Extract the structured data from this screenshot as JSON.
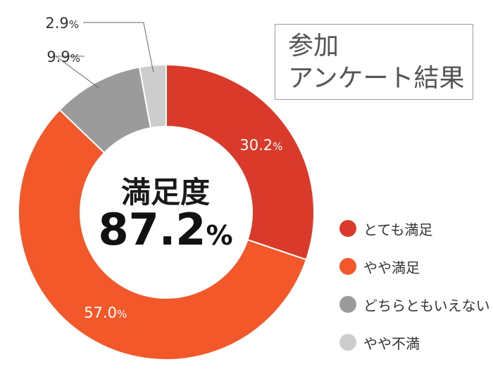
{
  "title_lines": [
    "参加",
    "アンケート結果"
  ],
  "center": {
    "title": "満足度",
    "value": "87.2",
    "unit": "%"
  },
  "chart_data": {
    "type": "pie",
    "variant": "donut",
    "unit": "%",
    "categories": [
      "とても満足",
      "やや満足",
      "どちらともいえない",
      "やや不満"
    ],
    "values": [
      30.2,
      57.0,
      9.9,
      2.9
    ],
    "value_labels": [
      "30.2",
      "57.0",
      "9.9",
      "2.9"
    ],
    "colors": [
      "#d93a2a",
      "#f2582a",
      "#9b9b9b",
      "#cdcdcd"
    ],
    "label_colors": [
      "#ffffff",
      "#ffffff",
      "#333333",
      "#333333"
    ],
    "legend_position": "right"
  }
}
